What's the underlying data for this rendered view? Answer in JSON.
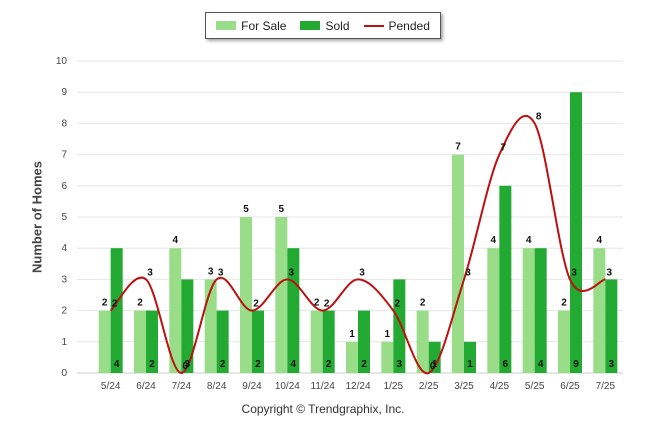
{
  "chart_data": {
    "type": "bar",
    "categories": [
      "5/24",
      "6/24",
      "7/24",
      "8/24",
      "9/24",
      "10/24",
      "11/24",
      "12/24",
      "1/25",
      "2/25",
      "3/25",
      "4/25",
      "5/25",
      "6/25",
      "7/25"
    ],
    "series": [
      {
        "name": "For Sale",
        "kind": "bar",
        "color": "#99dd88",
        "values": [
          2,
          2,
          4,
          3,
          5,
          5,
          2,
          1,
          1,
          2,
          7,
          4,
          4,
          2,
          4
        ]
      },
      {
        "name": "Sold",
        "kind": "bar",
        "color": "#22aa33",
        "values": [
          4,
          2,
          3,
          2,
          2,
          4,
          2,
          2,
          3,
          1,
          1,
          6,
          4,
          9,
          3
        ]
      },
      {
        "name": "Pended",
        "kind": "line",
        "color": "#bb1111",
        "values": [
          2,
          3,
          0,
          3,
          2,
          3,
          2,
          3,
          2,
          0,
          3,
          7,
          8,
          3,
          3
        ]
      }
    ],
    "ylabel": "Number of Homes",
    "ylim": [
      0,
      10
    ],
    "yticks": [
      0,
      1,
      2,
      3,
      4,
      5,
      6,
      7,
      8,
      9,
      10
    ],
    "grid": true,
    "legend": "top-center"
  },
  "footer": {
    "copyright": "Copyright © Trendgraphix, Inc."
  }
}
